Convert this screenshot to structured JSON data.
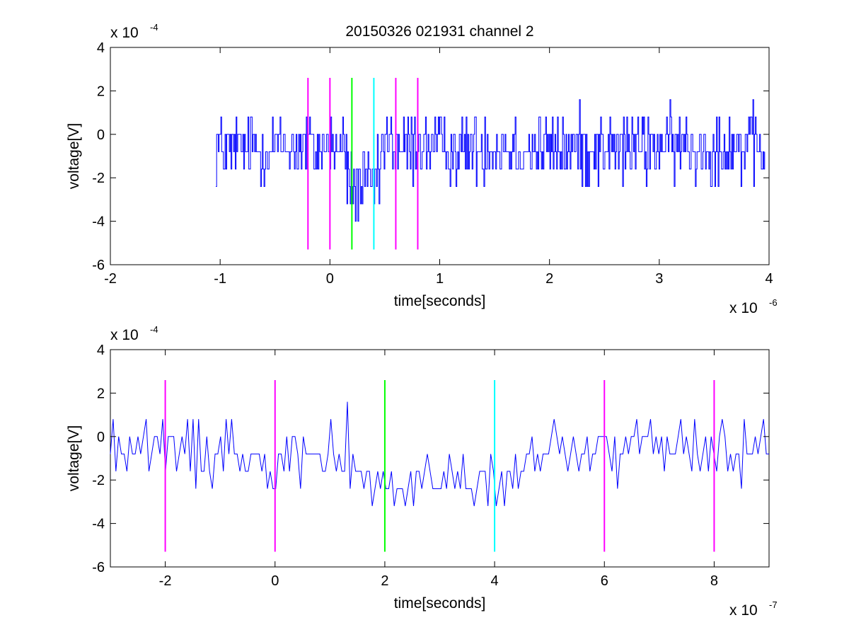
{
  "chart_data": [
    {
      "type": "line",
      "title": "20150326 021931 channel 2",
      "xlabel": "time[seconds]",
      "ylabel": "voltage[V]",
      "x_multiplier": {
        "base": "x 10",
        "exponent": "-6"
      },
      "y_multiplier": {
        "base": "x 10",
        "exponent": "-4"
      },
      "xlim": [
        -2,
        4
      ],
      "ylim": [
        -6,
        4
      ],
      "xticks": [
        "-2",
        "-1",
        "0",
        "1",
        "2",
        "3",
        "4"
      ],
      "yticks": [
        "-6",
        "-4",
        "-2",
        "0",
        "2",
        "4"
      ],
      "grid": false,
      "signal": {
        "color": "#0000ff",
        "x_start": -1.04,
        "x_end": 3.96,
        "points": 650,
        "quantization_step": 0.8,
        "baseline": -0.6,
        "dip": {
          "x_from": 0.15,
          "x_to": 0.45,
          "level": -2.2
        },
        "range": [
          -4.0,
          2.4
        ]
      },
      "markers": [
        {
          "x": -0.2,
          "color": "#ff00ff"
        },
        {
          "x": 0.0,
          "color": "#ff00ff"
        },
        {
          "x": 0.2,
          "color": "#00ff00"
        },
        {
          "x": 0.4,
          "color": "#00ffff"
        },
        {
          "x": 0.6,
          "color": "#ff00ff"
        },
        {
          "x": 0.8,
          "color": "#ff00ff"
        }
      ],
      "marker_range": [
        -5.3,
        2.6
      ]
    },
    {
      "type": "line",
      "title": "",
      "xlabel": "time[seconds]",
      "ylabel": "voltage[V]",
      "x_multiplier": {
        "base": "x 10",
        "exponent": "-7"
      },
      "y_multiplier": {
        "base": "x 10",
        "exponent": "-4"
      },
      "xlim": [
        -3,
        9
      ],
      "ylim": [
        -6,
        4
      ],
      "xticks": [
        "-2",
        "0",
        "2",
        "4",
        "6",
        "8"
      ],
      "yticks": [
        "-6",
        "-4",
        "-2",
        "0",
        "2",
        "4"
      ],
      "grid": false,
      "signal": {
        "color": "#0000ff",
        "x_start": -3,
        "x_end": 9,
        "points": 240,
        "quantization_step": 0.8,
        "baseline": -0.6,
        "dip": {
          "x_from": 1.4,
          "x_to": 4.6,
          "level": -2.2
        },
        "range": [
          -4.8,
          2.4
        ]
      },
      "markers": [
        {
          "x": -2,
          "color": "#ff00ff"
        },
        {
          "x": 0,
          "color": "#ff00ff"
        },
        {
          "x": 2,
          "color": "#00ff00"
        },
        {
          "x": 4,
          "color": "#00ffff"
        },
        {
          "x": 6,
          "color": "#ff00ff"
        },
        {
          "x": 8,
          "color": "#ff00ff"
        }
      ],
      "marker_range": [
        -5.3,
        2.6
      ]
    }
  ]
}
